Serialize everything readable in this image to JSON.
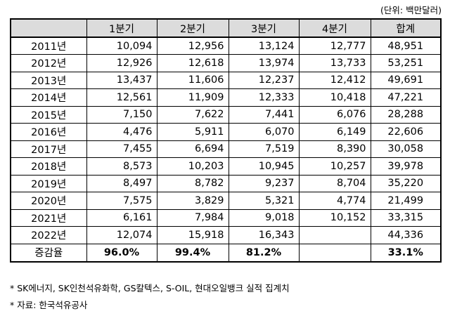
{
  "unit_label": "(단위: 백만달러)",
  "headers": [
    "",
    "1분기",
    "2분기",
    "3분기",
    "4분기",
    "합계"
  ],
  "rows": [
    {
      "year": "2011년",
      "q1": "10,094",
      "q2": "12,956",
      "q3": "13,124",
      "q4": "12,777",
      "total": "48,951"
    },
    {
      "year": "2012년",
      "q1": "12,926",
      "q2": "12,618",
      "q3": "13,974",
      "q4": "13,733",
      "total": "53,251"
    },
    {
      "year": "2013년",
      "q1": "13,437",
      "q2": "11,606",
      "q3": "12,237",
      "q4": "12,412",
      "total": "49,691"
    },
    {
      "year": "2014년",
      "q1": "12,561",
      "q2": "11,909",
      "q3": "12,333",
      "q4": "10,418",
      "total": "47,221"
    },
    {
      "year": "2015년",
      "q1": "7,150",
      "q2": "7,622",
      "q3": "7,441",
      "q4": "6,076",
      "total": "28,288"
    },
    {
      "year": "2016년",
      "q1": "4,476",
      "q2": "5,911",
      "q3": "6,070",
      "q4": "6,149",
      "total": "22,606"
    },
    {
      "year": "2017년",
      "q1": "7,455",
      "q2": "6,694",
      "q3": "7,519",
      "q4": "8,390",
      "total": "30,058"
    },
    {
      "year": "2018년",
      "q1": "8,573",
      "q2": "10,203",
      "q3": "10,945",
      "q4": "10,257",
      "total": "39,978"
    },
    {
      "year": "2019년",
      "q1": "8,497",
      "q2": "8,782",
      "q3": "9,237",
      "q4": "8,704",
      "total": "35,220"
    },
    {
      "year": "2020년",
      "q1": "7,575",
      "q2": "3,829",
      "q3": "5,321",
      "q4": "4,774",
      "total": "21,499"
    },
    {
      "year": "2021년",
      "q1": "6,161",
      "q2": "7,984",
      "q3": "9,018",
      "q4": "10,152",
      "total": "33,315"
    },
    {
      "year": "2022년",
      "q1": "12,074",
      "q2": "15,918",
      "q3": "16,343",
      "q4": "",
      "total": "44,336"
    }
  ],
  "rate_row": {
    "label": "증감율",
    "q1": "96.0%",
    "q2": "99.4%",
    "q3": "81.2%",
    "q4": "",
    "total": "33.1%"
  },
  "notes": [
    "* SK에너지, SK인천석유화학, GS칼텍스, S-OIL, 현대오일뱅크 실적 집계치",
    "* 자료: 한국석유공사"
  ]
}
